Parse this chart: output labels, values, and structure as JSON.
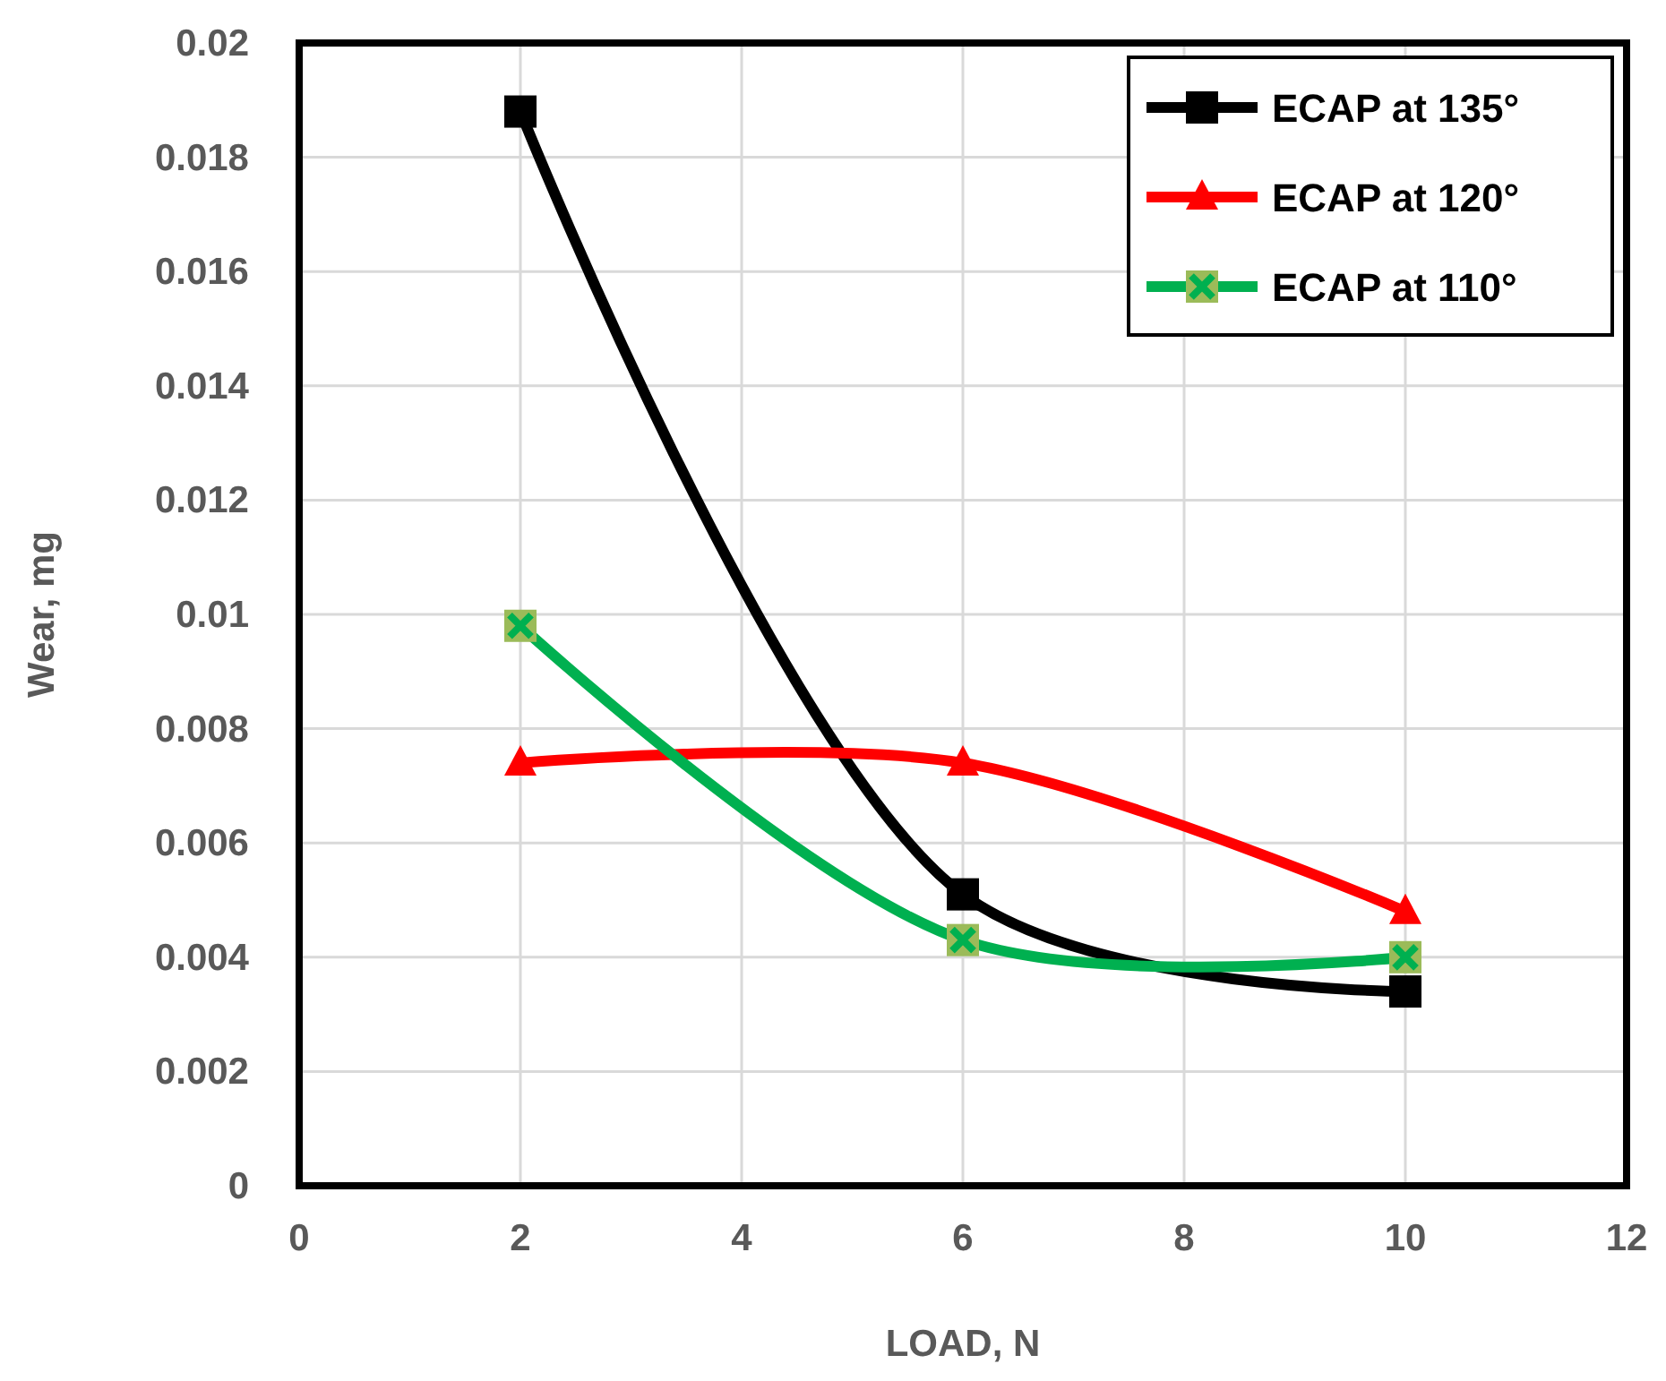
{
  "chart_data": {
    "type": "line",
    "xlabel": "LOAD, N",
    "ylabel": "Wear, mg",
    "x": [
      2,
      6,
      10
    ],
    "series": [
      {
        "name": "ECAP at 135°",
        "color": "#000000",
        "marker": "square",
        "values": [
          0.0188,
          0.0051,
          0.0034
        ]
      },
      {
        "name": "ECAP at 120°",
        "color": "#ff0000",
        "marker": "triangle",
        "values": [
          0.0074,
          0.0074,
          0.0048
        ]
      },
      {
        "name": "ECAP at 110°",
        "color": "#00b050",
        "marker": "cross",
        "values": [
          0.0098,
          0.0043,
          0.004
        ]
      }
    ],
    "xlim": [
      0,
      12
    ],
    "xticks": [
      0,
      2,
      4,
      6,
      8,
      10,
      12
    ],
    "ylim": [
      0,
      0.02
    ],
    "yticks": [
      0,
      0.002,
      0.004,
      0.006,
      0.008,
      {
        "value": 0.01,
        "label": "0.01"
      },
      0.012,
      0.014,
      0.016,
      0.018,
      0.02
    ],
    "grid": true,
    "legend": "top right",
    "line_style": "solid"
  }
}
